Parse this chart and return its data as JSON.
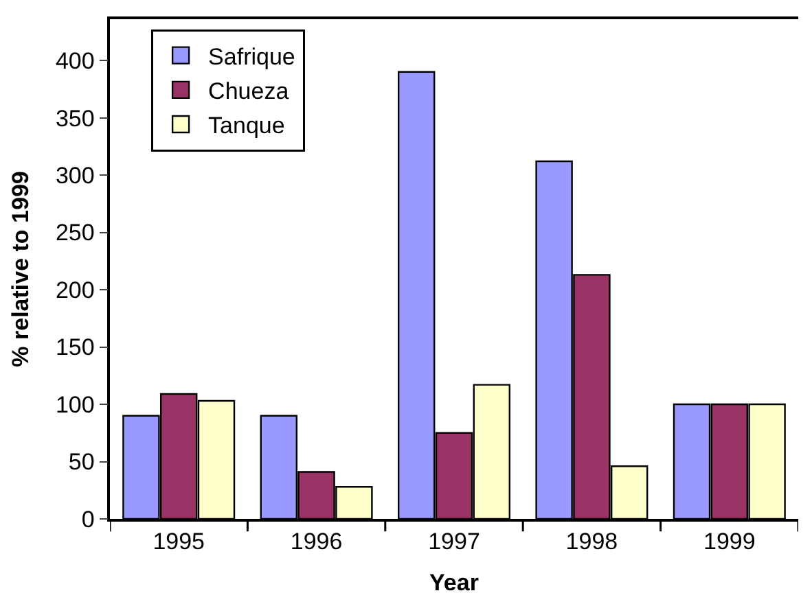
{
  "chart_data": {
    "type": "bar",
    "xlabel": "Year",
    "ylabel": "% relative to 1999",
    "categories": [
      "1995",
      "1996",
      "1997",
      "1998",
      "1999"
    ],
    "series": [
      {
        "name": "Safrique",
        "color": "#9999ff",
        "values": [
          90,
          90,
          390,
          312,
          100
        ]
      },
      {
        "name": "Chueza",
        "color": "#993366",
        "values": [
          109,
          41,
          75,
          213,
          100
        ]
      },
      {
        "name": "Tanque",
        "color": "#ffffcc",
        "values": [
          103,
          28,
          117,
          46,
          100
        ]
      }
    ],
    "ylim": [
      0,
      436
    ],
    "yticks": [
      0,
      50,
      100,
      150,
      200,
      250,
      300,
      350,
      400
    ],
    "grid": false,
    "legend": "top left"
  }
}
